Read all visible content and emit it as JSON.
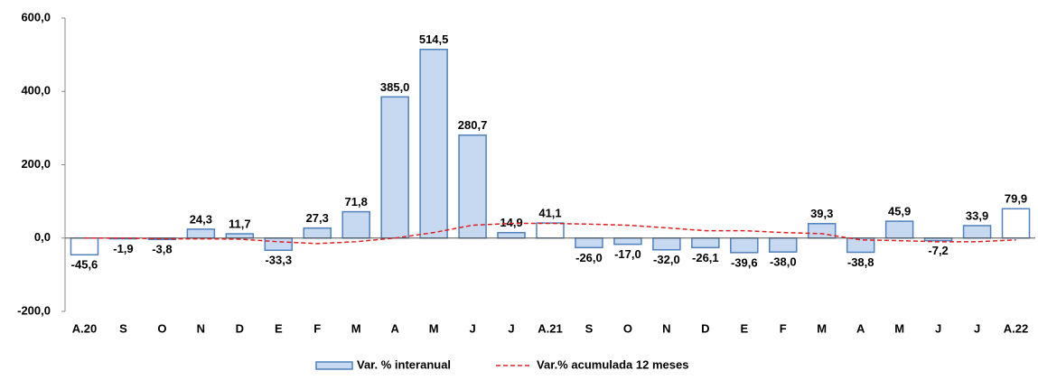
{
  "chart_data": {
    "type": "bar_line",
    "categories": [
      "A.20",
      "S",
      "O",
      "N",
      "D",
      "E",
      "F",
      "M",
      "A",
      "M",
      "J",
      "J",
      "A.21",
      "S",
      "O",
      "N",
      "D",
      "E",
      "F",
      "M",
      "A",
      "M",
      "J",
      "J",
      "A.22"
    ],
    "series": [
      {
        "name": "Var. % interanual",
        "type": "bar",
        "color": "#c6d9f1",
        "border": "#4f81bd",
        "colors": [
          "#ffffff",
          "#c6d9f1",
          "#c6d9f1",
          "#c6d9f1",
          "#c6d9f1",
          "#c6d9f1",
          "#c6d9f1",
          "#c6d9f1",
          "#c6d9f1",
          "#c6d9f1",
          "#c6d9f1",
          "#c6d9f1",
          "#ffffff",
          "#c6d9f1",
          "#c6d9f1",
          "#c6d9f1",
          "#c6d9f1",
          "#c6d9f1",
          "#c6d9f1",
          "#c6d9f1",
          "#c6d9f1",
          "#c6d9f1",
          "#c6d9f1",
          "#c6d9f1",
          "#ffffff"
        ],
        "values": [
          -45.6,
          -1.9,
          -3.8,
          24.3,
          11.7,
          -33.3,
          27.3,
          71.8,
          385.0,
          514.5,
          280.7,
          14.9,
          41.1,
          -26.0,
          -17.0,
          -32.0,
          -26.1,
          -39.6,
          -38.0,
          39.3,
          -38.8,
          45.9,
          -7.2,
          33.9,
          79.9
        ],
        "value_labels": [
          "-45,6",
          "-1,9",
          "-3,8",
          "24,3",
          "11,7",
          "-33,3",
          "27,3",
          "71,8",
          "385,0",
          "514,5",
          "280,7",
          "14,9",
          "41,1",
          "-26,0",
          "-17,0",
          "-32,0",
          "-26,1",
          "-39,6",
          "-38,0",
          "39,3",
          "-38,8",
          "45,9",
          "-7,2",
          "33,9",
          "79,9"
        ]
      },
      {
        "name": "Var.% acumulada 12 meses",
        "type": "line",
        "color": "#e02020",
        "dashed": true,
        "values": [
          0,
          0,
          -2,
          -2,
          -3,
          -10,
          -15,
          -10,
          0,
          15,
          35,
          40,
          40,
          38,
          35,
          28,
          20,
          20,
          15,
          12,
          -5,
          -7,
          -10,
          -10,
          -5
        ]
      }
    ],
    "ylim": [
      -200,
      600
    ],
    "yticks": [
      {
        "value": -200,
        "label": "-200,0"
      },
      {
        "value": 0,
        "label": "0,0"
      },
      {
        "value": 200,
        "label": "200,0"
      },
      {
        "value": 400,
        "label": "400,0"
      },
      {
        "value": 600,
        "label": "600,0"
      }
    ],
    "legend": "bottom"
  }
}
